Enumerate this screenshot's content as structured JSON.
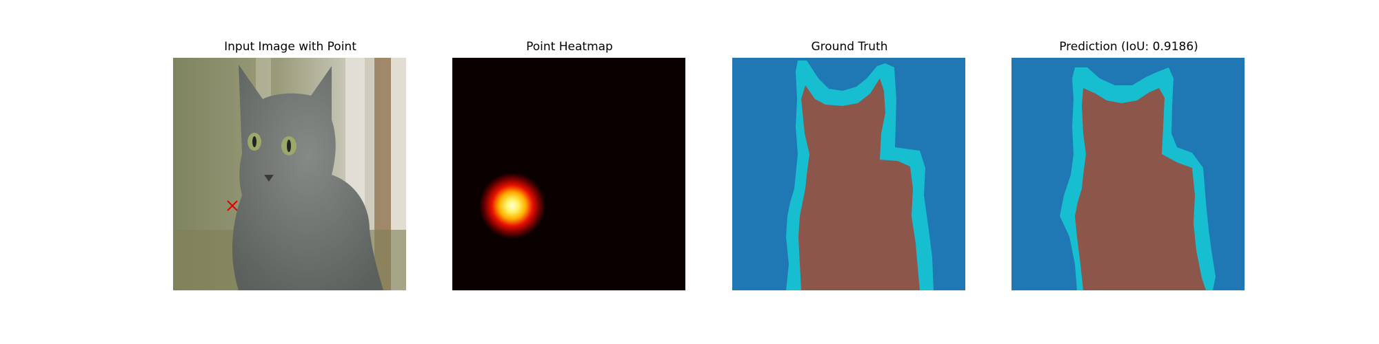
{
  "panels": [
    {
      "title": "Input Image with Point",
      "icon": "cat-photo-with-point-marker"
    },
    {
      "title": "Point Heatmap",
      "icon": "gaussian-heatmap"
    },
    {
      "title": "Ground Truth",
      "icon": "cat-segmentation-mask"
    },
    {
      "title": "Prediction (IoU: 0.9186)",
      "icon": "cat-segmentation-prediction"
    }
  ],
  "colors": {
    "mask_background": "#1f77b4",
    "mask_object": "#8c564b",
    "mask_boundary": "#17becf",
    "heatmap_background": "#0b0000",
    "point_marker": "#e00000"
  },
  "metrics": {
    "iou": 0.9186
  }
}
